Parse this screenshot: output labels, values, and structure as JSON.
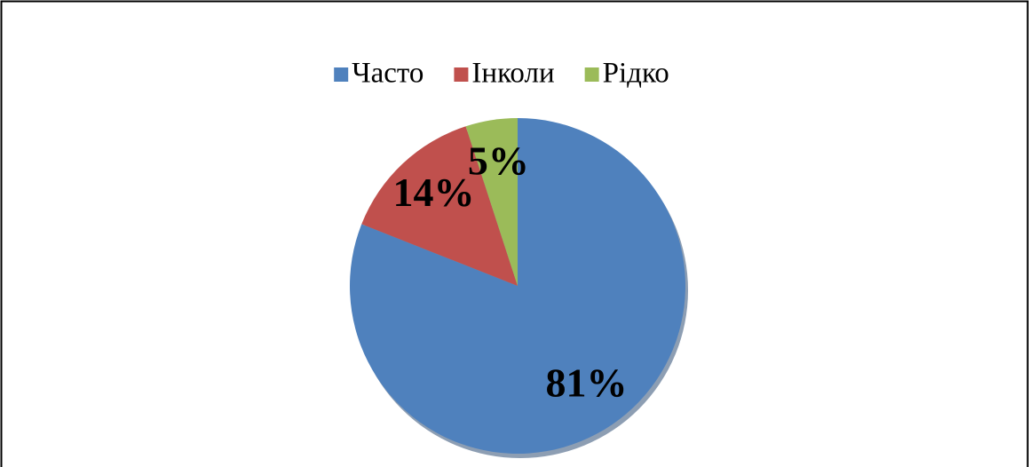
{
  "chart_data": {
    "type": "pie",
    "categories": [
      "Часто",
      "Інколи",
      "Рідко"
    ],
    "values": [
      81,
      14,
      5
    ],
    "value_labels": [
      "81%",
      "14%",
      "5%"
    ],
    "colors": [
      "#4f81bd",
      "#c0504d",
      "#9bbb59"
    ],
    "legend": "top"
  }
}
